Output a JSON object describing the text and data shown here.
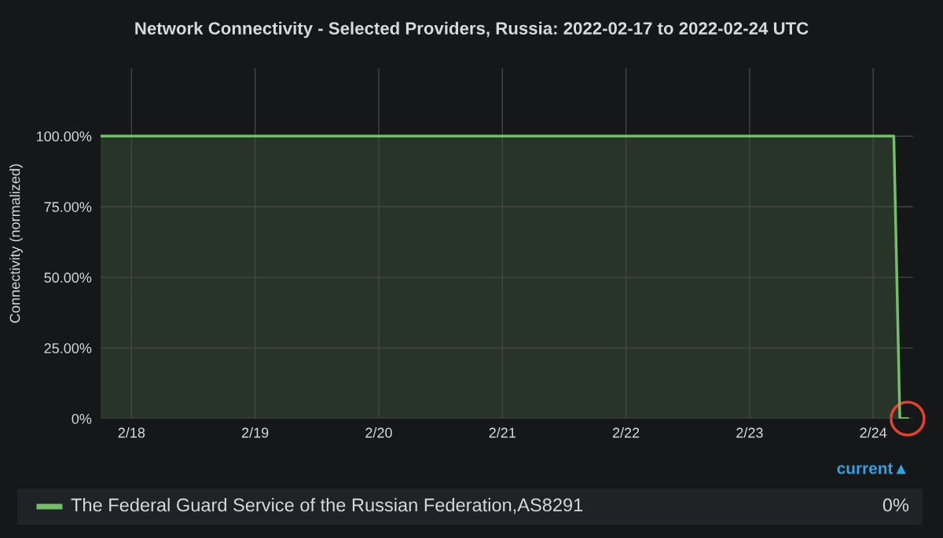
{
  "chart_data": {
    "type": "area",
    "title": "Network Connectivity - Selected Providers, Russia: 2022-02-17 to 2022-02-24 UTC",
    "ylabel": "Connectivity (normalized)",
    "x": [
      "2022-02-17T18:00",
      "2022-02-24T04:00",
      "2022-02-24T05:10",
      "2022-02-24T06:40"
    ],
    "series": [
      {
        "name": "The Federal Guard Service of the Russian Federation,AS8291",
        "color": "#73bf69",
        "values": [
          100,
          100,
          0,
          0
        ]
      }
    ],
    "xlim": [
      "2022-02-17T18:00",
      "2022-02-24T07:45"
    ],
    "xticks": [
      {
        "value": "2022-02-18",
        "label": "2/18"
      },
      {
        "value": "2022-02-19",
        "label": "2/19"
      },
      {
        "value": "2022-02-20",
        "label": "2/20"
      },
      {
        "value": "2022-02-21",
        "label": "2/21"
      },
      {
        "value": "2022-02-22",
        "label": "2/22"
      },
      {
        "value": "2022-02-23",
        "label": "2/23"
      },
      {
        "value": "2022-02-24",
        "label": "2/24"
      }
    ],
    "ylim": [
      0,
      124
    ],
    "yticks": [
      {
        "value": 0,
        "label": "0%"
      },
      {
        "value": 25,
        "label": "25.00%"
      },
      {
        "value": 50,
        "label": "50.00%"
      },
      {
        "value": 75,
        "label": "75.00%"
      },
      {
        "value": 100,
        "label": "100.00%"
      }
    ],
    "grid": true,
    "legend": "bottom",
    "legend_title": "current▲",
    "annotations": [
      "0%"
    ]
  }
}
